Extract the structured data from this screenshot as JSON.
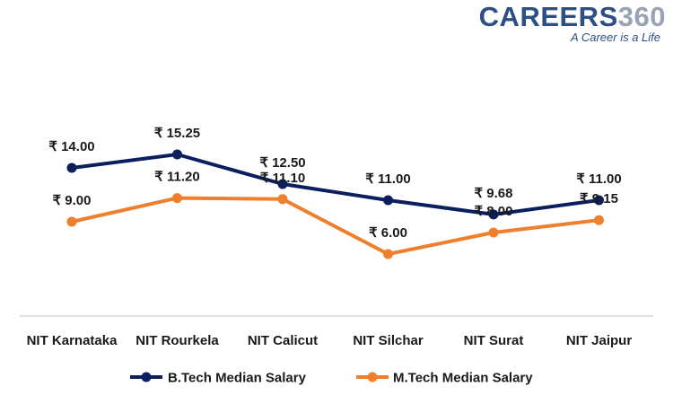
{
  "logo": {
    "brand": "CAREERS",
    "brand_number": "360",
    "tagline": "A Career is a Life"
  },
  "colors": {
    "btech": "#0b1f5e",
    "mtech": "#ee7f2d",
    "axis": "#bfbfbf"
  },
  "chart_data": {
    "type": "line",
    "title": "",
    "xlabel": "",
    "ylabel": "",
    "ylim": [
      0,
      18
    ],
    "grid": false,
    "legend": "bottom",
    "value_prefix": "₹ ",
    "categories": [
      "NIT Karnataka",
      "NIT Rourkela",
      "NIT Calicut",
      "NIT Silchar",
      "NIT Surat",
      "NIT Jaipur"
    ],
    "series": [
      {
        "name": "B.Tech Median Salary",
        "values": [
          14.0,
          15.25,
          12.5,
          11.0,
          9.68,
          11.0
        ],
        "labels": [
          "₹ 14.00",
          "₹ 15.25",
          "₹ 12.50",
          "₹ 11.00",
          "₹ 9.68",
          "₹ 11.00"
        ]
      },
      {
        "name": "M.Tech Median Salary",
        "values": [
          9.0,
          11.2,
          11.1,
          6.0,
          8.0,
          9.15
        ],
        "labels": [
          "₹ 9.00",
          "₹ 11.20",
          "₹ 11.10",
          "₹ 6.00",
          "₹ 8.00",
          "₹ 9.15"
        ]
      }
    ]
  }
}
